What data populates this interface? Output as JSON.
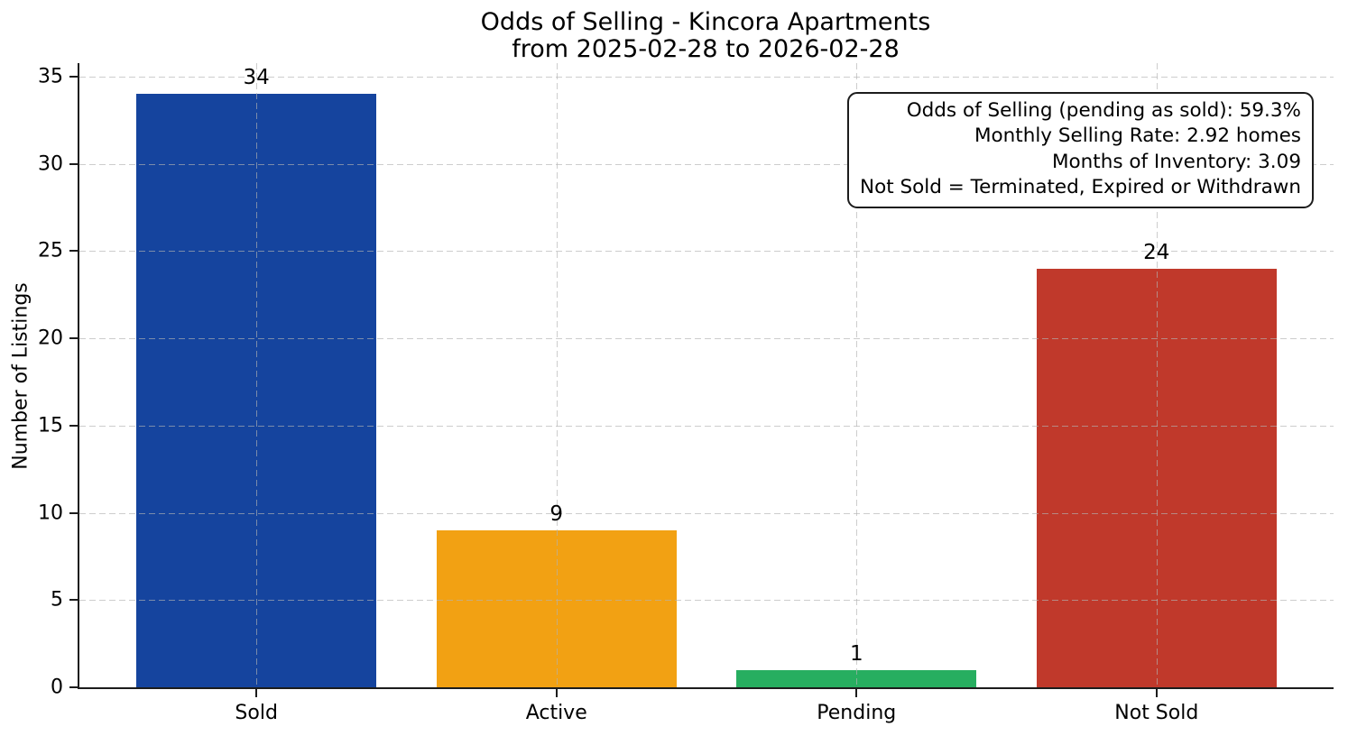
{
  "chart_data": {
    "type": "bar",
    "title": "Odds of Selling - Kincora Apartments",
    "subtitle": "from 2025-02-28 to 2026-02-28",
    "categories": [
      "Sold",
      "Active",
      "Pending",
      "Not Sold"
    ],
    "values": [
      34,
      9,
      1,
      24
    ],
    "bar_colors": [
      "#15449e",
      "#f2a113",
      "#27ae60",
      "#c0392b"
    ],
    "xlabel": "",
    "ylabel": "Number of Listings",
    "ylim": [
      0,
      35.77
    ],
    "yticks": [
      0,
      5,
      10,
      15,
      20,
      25,
      30,
      35
    ],
    "grid": "dashed both axes, drawn over bars",
    "legend_position": "none",
    "annotation_box": {
      "position": "top-right",
      "text_align": "right",
      "lines": [
        "Odds of Selling (pending as sold): 59.3%",
        "Monthly Selling Rate: 2.92 homes",
        "Months of Inventory: 3.09",
        "Not Sold = Terminated, Expired or Withdrawn"
      ]
    }
  },
  "style": {
    "grid_color": "#b2b2b2",
    "spine_color": "#1c1c1c",
    "background": "#ffffff",
    "text_color": "#000000"
  },
  "layout_hints": {
    "bar_slot_units": 4.18,
    "bar_width_units": 0.8,
    "first_bar_offset_units": 0.19
  }
}
